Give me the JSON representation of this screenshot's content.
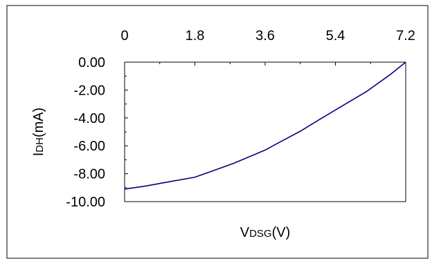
{
  "chart_data": {
    "type": "line",
    "title": "",
    "xlabel": {
      "main": "V",
      "sub": "DSG",
      "unit": "(V)"
    },
    "ylabel": {
      "main": "I",
      "sub": "DH",
      "unit": "(mA)"
    },
    "xlim": [
      0,
      7.2
    ],
    "ylim": [
      -10,
      0
    ],
    "x_ticks": [
      "0",
      "1.8",
      "3.6",
      "5.4",
      "7.2"
    ],
    "x_tick_values": [
      0,
      1.8,
      3.6,
      5.4,
      7.2
    ],
    "y_ticks": [
      "0.00",
      "-2.00",
      "-4.00",
      "-6.00",
      "-8.00",
      "-10.00"
    ],
    "y_tick_values": [
      0,
      -2,
      -4,
      -6,
      -8,
      -10
    ],
    "x_axis_position": "top",
    "grid": false,
    "legend": "none",
    "line_color": "#000080",
    "series": [
      {
        "x": [
          0,
          0.5,
          1.0,
          1.8,
          2.2,
          2.8,
          3.6,
          4.0,
          4.5,
          5.0,
          5.6,
          6.2,
          6.8,
          7.2
        ],
        "y": [
          -9.1,
          -8.9,
          -8.65,
          -8.25,
          -7.85,
          -7.25,
          -6.3,
          -5.7,
          -4.95,
          -4.1,
          -3.1,
          -2.1,
          -0.9,
          0.0
        ]
      }
    ]
  }
}
